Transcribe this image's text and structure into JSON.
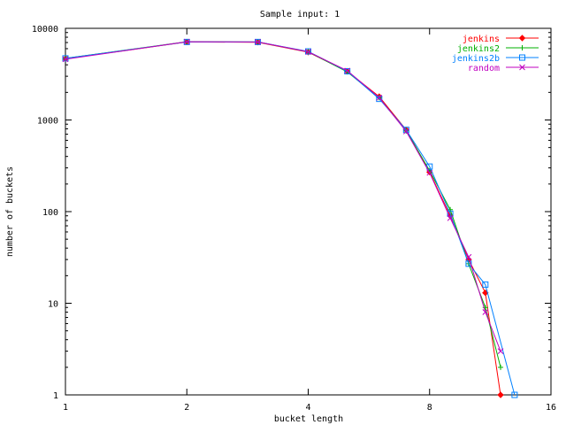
{
  "chart_data": {
    "type": "line",
    "title": "Sample input: 1",
    "xlabel": "bucket length",
    "ylabel": "number of buckets",
    "xscale": "log2",
    "yscale": "log10",
    "xlim": [
      1,
      16
    ],
    "ylim": [
      1,
      10000
    ],
    "xticks": [
      1,
      2,
      4,
      8,
      16
    ],
    "xtick_labels": [
      "1",
      "2",
      "4",
      "8",
      "16"
    ],
    "yticks": [
      1,
      10,
      100,
      1000,
      10000
    ],
    "ytick_labels": [
      "1",
      "10",
      "100",
      "1000",
      "10000"
    ],
    "grid": false,
    "legend_position": "top-right",
    "series": [
      {
        "name": "jenkins",
        "color": "#ff0000",
        "marker": "diamond",
        "x": [
          1,
          2,
          3,
          4,
          5,
          6,
          7,
          8,
          9,
          10,
          11,
          12
        ],
        "y": [
          4650,
          7100,
          7050,
          5500,
          3400,
          1800,
          780,
          270,
          90,
          30,
          13,
          1
        ]
      },
      {
        "name": "jenkins2",
        "color": "#00b000",
        "marker": "plus",
        "x": [
          1,
          2,
          3,
          4,
          5,
          6,
          7,
          8,
          9,
          10,
          11,
          12
        ],
        "y": [
          4700,
          7150,
          7100,
          5550,
          3350,
          1750,
          760,
          280,
          105,
          27,
          9,
          2
        ]
      },
      {
        "name": "jenkins2b",
        "color": "#0080ff",
        "marker": "square",
        "x": [
          1,
          2,
          3,
          4,
          5,
          6,
          7,
          8,
          9,
          10,
          11,
          13
        ],
        "y": [
          4700,
          7100,
          7100,
          5600,
          3400,
          1700,
          780,
          310,
          95,
          27,
          16,
          1
        ]
      },
      {
        "name": "random",
        "color": "#c000c0",
        "marker": "cross",
        "x": [
          1,
          2,
          3,
          4,
          5,
          6,
          7,
          8,
          9,
          10,
          11,
          12
        ],
        "y": [
          4600,
          7150,
          7100,
          5550,
          3450,
          1750,
          750,
          265,
          85,
          32,
          8,
          3
        ]
      }
    ]
  }
}
